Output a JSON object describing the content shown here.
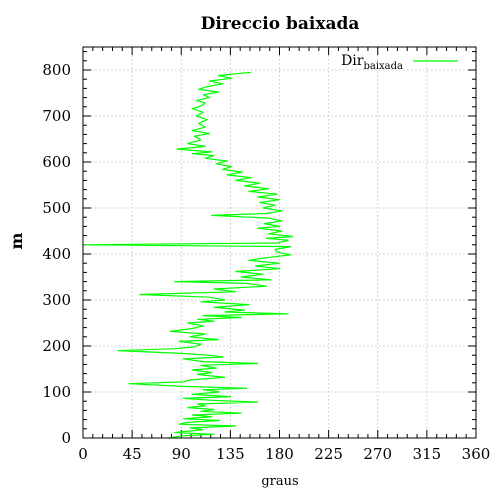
{
  "chart_data": {
    "type": "line",
    "title": "Direccio baixada",
    "xlabel": "graus",
    "ylabel": "m",
    "xlim": [
      0,
      360
    ],
    "ylim": [
      0,
      850
    ],
    "xticks": [
      0,
      45,
      90,
      135,
      180,
      225,
      270,
      315,
      360
    ],
    "yticks": [
      0,
      100,
      200,
      300,
      400,
      500,
      600,
      700,
      800
    ],
    "grid": true,
    "legend_position": "top-right",
    "colors": {
      "series": "#00ff00",
      "grid": "#b8b8b8",
      "frame": "#000000"
    },
    "series": [
      {
        "name": "Dir",
        "name_subscript": "baixada",
        "points": [
          [
            78,
            0
          ],
          [
            92,
            5
          ],
          [
            120,
            8
          ],
          [
            84,
            12
          ],
          [
            110,
            18
          ],
          [
            98,
            22
          ],
          [
            140,
            26
          ],
          [
            88,
            30
          ],
          [
            96,
            34
          ],
          [
            125,
            38
          ],
          [
            92,
            42
          ],
          [
            118,
            46
          ],
          [
            100,
            50
          ],
          [
            145,
            54
          ],
          [
            108,
            58
          ],
          [
            120,
            62
          ],
          [
            96,
            66
          ],
          [
            112,
            70
          ],
          [
            105,
            74
          ],
          [
            160,
            78
          ],
          [
            118,
            82
          ],
          [
            92,
            86
          ],
          [
            135,
            90
          ],
          [
            100,
            95
          ],
          [
            125,
            100
          ],
          [
            110,
            105
          ],
          [
            150,
            108
          ],
          [
            95,
            112
          ],
          [
            42,
            118
          ],
          [
            92,
            122
          ],
          [
            98,
            126
          ],
          [
            130,
            132
          ],
          [
            105,
            138
          ],
          [
            118,
            142
          ],
          [
            100,
            148
          ],
          [
            122,
            152
          ],
          [
            108,
            158
          ],
          [
            160,
            162
          ],
          [
            110,
            166
          ],
          [
            92,
            172
          ],
          [
            128,
            176
          ],
          [
            115,
            180
          ],
          [
            90,
            184
          ],
          [
            32,
            190
          ],
          [
            82,
            194
          ],
          [
            102,
            198
          ],
          [
            108,
            204
          ],
          [
            88,
            210
          ],
          [
            124,
            214
          ],
          [
            98,
            220
          ],
          [
            112,
            226
          ],
          [
            80,
            232
          ],
          [
            100,
            238
          ],
          [
            110,
            244
          ],
          [
            96,
            250
          ],
          [
            120,
            254
          ],
          [
            105,
            258
          ],
          [
            145,
            262
          ],
          [
            110,
            266
          ],
          [
            188,
            270
          ],
          [
            130,
            274
          ],
          [
            148,
            278
          ],
          [
            120,
            284
          ],
          [
            152,
            290
          ],
          [
            108,
            296
          ],
          [
            130,
            300
          ],
          [
            116,
            306
          ],
          [
            52,
            312
          ],
          [
            140,
            318
          ],
          [
            120,
            324
          ],
          [
            168,
            330
          ],
          [
            150,
            336
          ],
          [
            84,
            340
          ],
          [
            172,
            344
          ],
          [
            145,
            350
          ],
          [
            165,
            356
          ],
          [
            140,
            362
          ],
          [
            180,
            368
          ],
          [
            158,
            374
          ],
          [
            180,
            380
          ],
          [
            152,
            386
          ],
          [
            168,
            392
          ],
          [
            190,
            398
          ],
          [
            178,
            404
          ],
          [
            176,
            410
          ],
          [
            190,
            416
          ],
          [
            0,
            420
          ],
          [
            178,
            424
          ],
          [
            188,
            430
          ],
          [
            168,
            434
          ],
          [
            192,
            438
          ],
          [
            170,
            444
          ],
          [
            182,
            450
          ],
          [
            160,
            456
          ],
          [
            180,
            460
          ],
          [
            166,
            466
          ],
          [
            182,
            472
          ],
          [
            170,
            478
          ],
          [
            118,
            484
          ],
          [
            168,
            488
          ],
          [
            182,
            494
          ],
          [
            165,
            500
          ],
          [
            176,
            506
          ],
          [
            162,
            512
          ],
          [
            180,
            518
          ],
          [
            160,
            524
          ],
          [
            178,
            530
          ],
          [
            152,
            536
          ],
          [
            170,
            542
          ],
          [
            148,
            548
          ],
          [
            162,
            554
          ],
          [
            140,
            560
          ],
          [
            154,
            566
          ],
          [
            132,
            572
          ],
          [
            146,
            578
          ],
          [
            128,
            584
          ],
          [
            136,
            590
          ],
          [
            122,
            596
          ],
          [
            132,
            602
          ],
          [
            112,
            608
          ],
          [
            120,
            614
          ],
          [
            100,
            618
          ],
          [
            118,
            622
          ],
          [
            86,
            628
          ],
          [
            112,
            634
          ],
          [
            96,
            640
          ],
          [
            108,
            648
          ],
          [
            102,
            656
          ],
          [
            116,
            662
          ],
          [
            100,
            668
          ],
          [
            112,
            676
          ],
          [
            106,
            684
          ],
          [
            114,
            692
          ],
          [
            104,
            700
          ],
          [
            110,
            708
          ],
          [
            100,
            716
          ],
          [
            108,
            722
          ],
          [
            112,
            728
          ],
          [
            104,
            734
          ],
          [
            116,
            740
          ],
          [
            110,
            746
          ],
          [
            124,
            752
          ],
          [
            106,
            758
          ],
          [
            114,
            764
          ],
          [
            128,
            770
          ],
          [
            116,
            776
          ],
          [
            136,
            782
          ],
          [
            124,
            788
          ],
          [
            154,
            795
          ]
        ]
      }
    ]
  }
}
